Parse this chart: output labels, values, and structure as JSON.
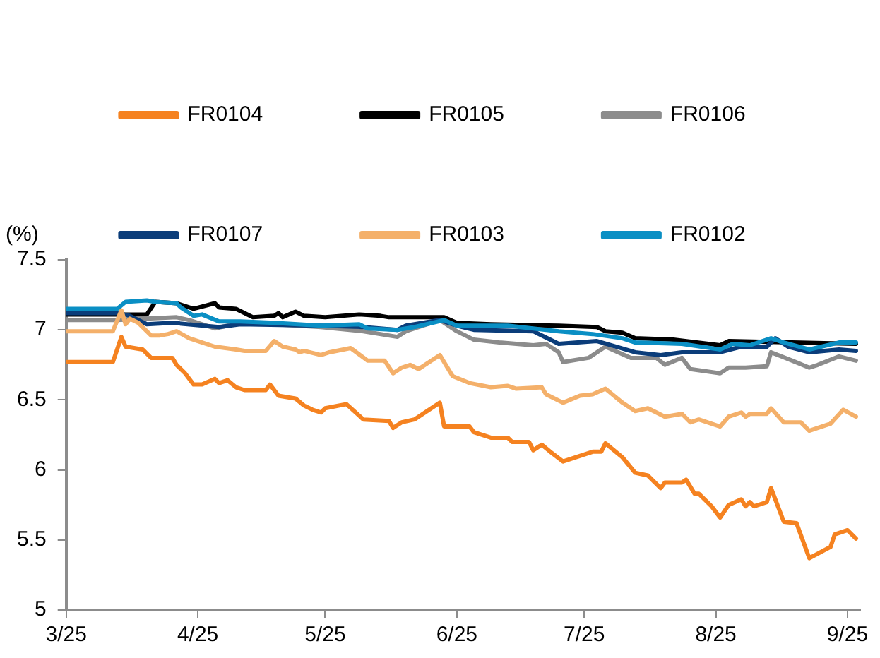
{
  "chart_data": {
    "type": "line",
    "ylabel": "(%)",
    "legend": "top",
    "grid": false,
    "marker": "none",
    "line_style": "solid",
    "xlim": [
      "2025-03-01",
      "2025-09-04"
    ],
    "xticks": [
      {
        "value": "2025-03-01",
        "label": "3/25"
      },
      {
        "value": "2025-04-01",
        "label": "4/25"
      },
      {
        "value": "2025-05-01",
        "label": "5/25"
      },
      {
        "value": "2025-06-01",
        "label": "6/25"
      },
      {
        "value": "2025-07-01",
        "label": "7/25"
      },
      {
        "value": "2025-08-01",
        "label": "8/25"
      },
      {
        "value": "2025-09-01",
        "label": "9/25"
      }
    ],
    "ylim": [
      5,
      7.5
    ],
    "yticks": [
      5,
      5.5,
      6,
      6.5,
      7,
      7.5
    ],
    "series": [
      {
        "name": "FR0104",
        "color": "#f58220",
        "x": [
          "2025-03-01",
          "2025-03-12",
          "2025-03-14",
          "2025-03-15",
          "2025-03-19",
          "2025-03-21",
          "2025-03-26",
          "2025-03-27",
          "2025-03-29",
          "2025-03-31",
          "2025-04-02",
          "2025-04-05",
          "2025-04-06",
          "2025-04-08",
          "2025-04-10",
          "2025-04-12",
          "2025-04-17",
          "2025-04-18",
          "2025-04-20",
          "2025-04-24",
          "2025-04-26",
          "2025-04-28",
          "2025-04-30",
          "2025-05-01",
          "2025-05-06",
          "2025-05-10",
          "2025-05-16",
          "2025-05-17",
          "2025-05-19",
          "2025-05-22",
          "2025-05-25",
          "2025-05-28",
          "2025-05-29",
          "2025-05-31",
          "2025-06-04",
          "2025-06-05",
          "2025-06-09",
          "2025-06-13",
          "2025-06-14",
          "2025-06-18",
          "2025-06-19",
          "2025-06-21",
          "2025-06-23",
          "2025-06-26",
          "2025-07-03",
          "2025-07-05",
          "2025-07-06",
          "2025-07-10",
          "2025-07-13",
          "2025-07-16",
          "2025-07-19",
          "2025-07-20",
          "2025-07-24",
          "2025-07-25",
          "2025-07-27",
          "2025-07-28",
          "2025-07-31",
          "2025-08-02",
          "2025-08-04",
          "2025-08-07",
          "2025-08-08",
          "2025-08-09",
          "2025-08-10",
          "2025-08-13",
          "2025-08-14",
          "2025-08-17",
          "2025-08-20",
          "2025-08-23",
          "2025-08-28",
          "2025-08-29",
          "2025-09-01",
          "2025-09-03"
        ],
        "values": [
          6.77,
          6.77,
          6.95,
          6.88,
          6.86,
          6.8,
          6.8,
          6.75,
          6.69,
          6.61,
          6.61,
          6.65,
          6.62,
          6.64,
          6.59,
          6.57,
          6.57,
          6.61,
          6.53,
          6.51,
          6.46,
          6.43,
          6.41,
          6.44,
          6.47,
          6.36,
          6.35,
          6.3,
          6.34,
          6.36,
          6.42,
          6.48,
          6.31,
          6.31,
          6.31,
          6.27,
          6.23,
          6.23,
          6.2,
          6.2,
          6.14,
          6.18,
          6.13,
          6.06,
          6.13,
          6.13,
          6.19,
          6.09,
          5.98,
          5.96,
          5.87,
          5.91,
          5.91,
          5.93,
          5.83,
          5.83,
          5.74,
          5.66,
          5.75,
          5.79,
          5.74,
          5.77,
          5.74,
          5.77,
          5.87,
          5.63,
          5.62,
          5.37,
          5.45,
          5.54,
          5.57,
          5.51
        ]
      },
      {
        "name": "FR0105",
        "color": "#000000",
        "x": [
          "2025-03-01",
          "2025-03-20",
          "2025-03-22",
          "2025-03-27",
          "2025-03-31",
          "2025-04-05",
          "2025-04-06",
          "2025-04-10",
          "2025-04-14",
          "2025-04-19",
          "2025-04-20",
          "2025-04-21",
          "2025-04-24",
          "2025-04-26",
          "2025-05-01",
          "2025-05-09",
          "2025-05-14",
          "2025-05-16",
          "2025-05-22",
          "2025-05-29",
          "2025-06-01",
          "2025-06-09",
          "2025-06-25",
          "2025-07-04",
          "2025-07-06",
          "2025-07-10",
          "2025-07-13",
          "2025-07-22",
          "2025-08-02",
          "2025-08-04",
          "2025-09-03"
        ],
        "values": [
          7.11,
          7.11,
          7.2,
          7.19,
          7.15,
          7.19,
          7.16,
          7.15,
          7.09,
          7.1,
          7.12,
          7.09,
          7.13,
          7.1,
          7.09,
          7.11,
          7.1,
          7.09,
          7.09,
          7.09,
          7.05,
          7.04,
          7.03,
          7.02,
          6.99,
          6.98,
          6.94,
          6.93,
          6.89,
          6.92,
          6.9
        ]
      },
      {
        "name": "FR0106",
        "color": "#8c8c8c",
        "x": [
          "2025-03-01",
          "2025-03-13",
          "2025-03-27",
          "2025-03-30",
          "2025-04-05",
          "2025-04-11",
          "2025-04-19",
          "2025-04-30",
          "2025-05-10",
          "2025-05-18",
          "2025-05-20",
          "2025-05-28",
          "2025-06-01",
          "2025-06-05",
          "2025-06-11",
          "2025-06-19",
          "2025-06-22",
          "2025-06-25",
          "2025-06-26",
          "2025-07-02",
          "2025-07-06",
          "2025-07-12",
          "2025-07-18",
          "2025-07-20",
          "2025-07-24",
          "2025-07-26",
          "2025-08-02",
          "2025-08-04",
          "2025-08-08",
          "2025-08-13",
          "2025-08-14",
          "2025-08-19",
          "2025-08-23",
          "2025-08-25",
          "2025-08-30",
          "2025-09-03"
        ],
        "values": [
          7.07,
          7.07,
          7.09,
          7.07,
          7.01,
          7.05,
          7.04,
          7.02,
          6.99,
          6.95,
          6.99,
          7.07,
          6.99,
          6.93,
          6.91,
          6.89,
          6.9,
          6.84,
          6.77,
          6.8,
          6.88,
          6.8,
          6.8,
          6.75,
          6.8,
          6.72,
          6.69,
          6.73,
          6.73,
          6.74,
          6.84,
          6.78,
          6.73,
          6.75,
          6.81,
          6.78
        ]
      },
      {
        "name": "FR0107",
        "color": "#0b3d7a",
        "x": [
          "2025-03-01",
          "2025-03-13",
          "2025-03-16",
          "2025-03-20",
          "2025-03-26",
          "2025-04-06",
          "2025-04-11",
          "2025-04-30",
          "2025-05-10",
          "2025-05-18",
          "2025-05-20",
          "2025-05-28",
          "2025-06-01",
          "2025-06-05",
          "2025-06-19",
          "2025-06-25",
          "2025-07-04",
          "2025-07-13",
          "2025-07-19",
          "2025-07-24",
          "2025-08-02",
          "2025-08-07",
          "2025-08-13",
          "2025-08-15",
          "2025-08-18",
          "2025-08-23",
          "2025-08-30",
          "2025-09-03"
        ],
        "values": [
          7.12,
          7.12,
          7.1,
          7.04,
          7.05,
          7.02,
          7.04,
          7.03,
          7.02,
          7,
          7.03,
          7.07,
          7.03,
          7,
          6.99,
          6.9,
          6.92,
          6.84,
          6.82,
          6.84,
          6.84,
          6.88,
          6.88,
          6.94,
          6.88,
          6.84,
          6.86,
          6.85
        ]
      },
      {
        "name": "FR0103",
        "color": "#f4b06a",
        "x": [
          "2025-03-01",
          "2025-03-12",
          "2025-03-14",
          "2025-03-15",
          "2025-03-16",
          "2025-03-18",
          "2025-03-21",
          "2025-03-23",
          "2025-03-25",
          "2025-03-27",
          "2025-03-30",
          "2025-04-01",
          "2025-04-05",
          "2025-04-10",
          "2025-04-12",
          "2025-04-17",
          "2025-04-19",
          "2025-04-21",
          "2025-04-24",
          "2025-04-25",
          "2025-04-26",
          "2025-04-30",
          "2025-05-02",
          "2025-05-07",
          "2025-05-11",
          "2025-05-15",
          "2025-05-17",
          "2025-05-19",
          "2025-05-21",
          "2025-05-23",
          "2025-05-28",
          "2025-05-31",
          "2025-06-04",
          "2025-06-09",
          "2025-06-13",
          "2025-06-15",
          "2025-06-21",
          "2025-06-22",
          "2025-06-26",
          "2025-06-30",
          "2025-07-03",
          "2025-07-06",
          "2025-07-10",
          "2025-07-13",
          "2025-07-16",
          "2025-07-20",
          "2025-07-24",
          "2025-07-26",
          "2025-07-28",
          "2025-08-02",
          "2025-08-04",
          "2025-08-07",
          "2025-08-08",
          "2025-08-09",
          "2025-08-13",
          "2025-08-14",
          "2025-08-17",
          "2025-08-21",
          "2025-08-23",
          "2025-08-28",
          "2025-08-31",
          "2025-09-03"
        ],
        "values": [
          6.99,
          6.99,
          7.14,
          7.04,
          7.08,
          7.05,
          6.96,
          6.96,
          6.97,
          6.99,
          6.94,
          6.92,
          6.88,
          6.86,
          6.85,
          6.85,
          6.92,
          6.88,
          6.86,
          6.84,
          6.85,
          6.82,
          6.84,
          6.87,
          6.78,
          6.78,
          6.69,
          6.73,
          6.75,
          6.72,
          6.82,
          6.67,
          6.62,
          6.59,
          6.6,
          6.58,
          6.59,
          6.54,
          6.48,
          6.53,
          6.54,
          6.58,
          6.48,
          6.42,
          6.44,
          6.38,
          6.4,
          6.34,
          6.36,
          6.31,
          6.38,
          6.41,
          6.38,
          6.4,
          6.4,
          6.44,
          6.34,
          6.34,
          6.28,
          6.33,
          6.43,
          6.38
        ]
      },
      {
        "name": "FR0102",
        "color": "#0a8fc4",
        "x": [
          "2025-03-01",
          "2025-03-13",
          "2025-03-15",
          "2025-03-20",
          "2025-03-22",
          "2025-03-27",
          "2025-03-28",
          "2025-03-31",
          "2025-04-02",
          "2025-04-06",
          "2025-04-11",
          "2025-04-19",
          "2025-04-30",
          "2025-05-09",
          "2025-05-11",
          "2025-05-18",
          "2025-05-22",
          "2025-05-29",
          "2025-06-01",
          "2025-06-13",
          "2025-06-25",
          "2025-07-03",
          "2025-07-10",
          "2025-07-13",
          "2025-07-24",
          "2025-08-02",
          "2025-08-05",
          "2025-08-09",
          "2025-08-14",
          "2025-08-17",
          "2025-08-23",
          "2025-08-30",
          "2025-09-03"
        ],
        "values": [
          7.15,
          7.15,
          7.2,
          7.21,
          7.2,
          7.19,
          7.16,
          7.1,
          7.11,
          7.06,
          7.06,
          7.05,
          7.03,
          7.04,
          7.01,
          7,
          7.02,
          7.07,
          7.03,
          7.03,
          6.99,
          6.97,
          6.94,
          6.91,
          6.9,
          6.86,
          6.9,
          6.89,
          6.94,
          6.91,
          6.86,
          6.91,
          6.91
        ]
      }
    ]
  }
}
